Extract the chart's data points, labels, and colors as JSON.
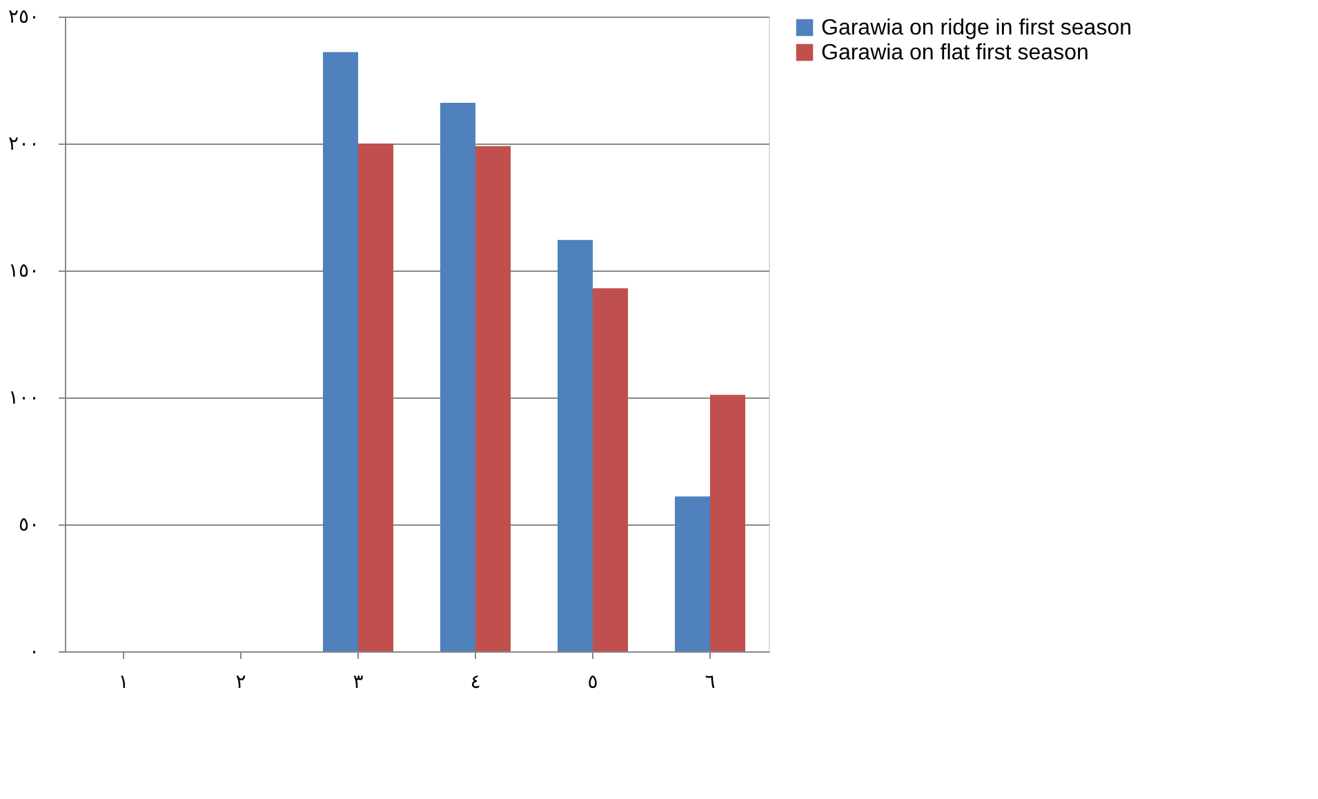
{
  "chart_data": {
    "type": "bar",
    "categories": [
      "١",
      "٢",
      "٣",
      "٤",
      "٥",
      "٦"
    ],
    "series": [
      {
        "name": "Garawia on ridge in first season",
        "color": "#4f81bd",
        "values": [
          null,
          null,
          236,
          216,
          162,
          61
        ]
      },
      {
        "name": "Garawia on flat first season",
        "color": "#c0504d",
        "values": [
          null,
          null,
          200,
          199,
          143,
          101
        ]
      }
    ],
    "ylim": [
      0,
      250
    ],
    "yticks": [
      {
        "value": 0,
        "label": "٠"
      },
      {
        "value": 50,
        "label": "٥٠"
      },
      {
        "value": 100,
        "label": "١٠٠"
      },
      {
        "value": 150,
        "label": "١٥٠"
      },
      {
        "value": 200,
        "label": "٢٠٠"
      },
      {
        "value": 250,
        "label": "٢٥٠"
      }
    ],
    "grid": "y",
    "legend": "right"
  }
}
